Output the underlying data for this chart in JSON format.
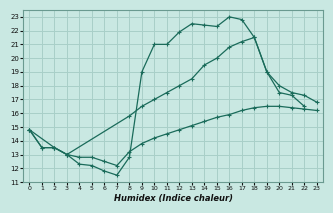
{
  "xlabel": "Humidex (Indice chaleur)",
  "xlim": [
    -0.5,
    23.5
  ],
  "ylim": [
    11,
    23.5
  ],
  "xticks": [
    0,
    1,
    2,
    3,
    4,
    5,
    6,
    7,
    8,
    9,
    10,
    11,
    12,
    13,
    14,
    15,
    16,
    17,
    18,
    19,
    20,
    21,
    22,
    23
  ],
  "yticks": [
    11,
    12,
    13,
    14,
    15,
    16,
    17,
    18,
    19,
    20,
    21,
    22,
    23
  ],
  "bg_color": "#c9e8e2",
  "grid_color": "#a8cfc8",
  "line_color": "#1a6b5a",
  "line1_x": [
    0,
    1,
    2,
    3,
    4,
    5,
    6,
    7,
    8,
    9,
    10,
    11,
    12,
    13,
    14,
    15,
    16,
    17,
    18,
    19,
    20,
    21,
    22
  ],
  "line1_y": [
    14.8,
    13.5,
    13.5,
    13.0,
    12.3,
    12.2,
    11.8,
    11.5,
    12.8,
    19.0,
    21.0,
    21.0,
    21.9,
    22.5,
    22.4,
    22.3,
    23.0,
    22.8,
    21.5,
    19.0,
    17.5,
    17.3,
    16.5
  ],
  "line2_x": [
    0,
    2,
    3,
    8,
    9,
    10,
    11,
    12,
    13,
    14,
    15,
    16,
    17,
    18,
    19,
    20,
    21,
    22,
    23
  ],
  "line2_y": [
    14.8,
    13.5,
    13.0,
    15.8,
    16.5,
    17.0,
    17.5,
    18.0,
    18.5,
    19.5,
    20.0,
    20.8,
    21.2,
    21.5,
    19.0,
    18.0,
    17.5,
    17.3,
    16.8
  ],
  "line3_x": [
    0,
    1,
    2,
    3,
    4,
    5,
    6,
    7,
    8,
    9,
    10,
    11,
    12,
    13,
    14,
    15,
    16,
    17,
    18,
    19,
    20,
    21,
    22,
    23
  ],
  "line3_y": [
    14.8,
    13.5,
    13.5,
    13.0,
    12.8,
    12.8,
    12.5,
    12.2,
    13.2,
    13.8,
    14.2,
    14.5,
    14.8,
    15.1,
    15.4,
    15.7,
    15.9,
    16.2,
    16.4,
    16.5,
    16.5,
    16.4,
    16.3,
    16.2
  ]
}
